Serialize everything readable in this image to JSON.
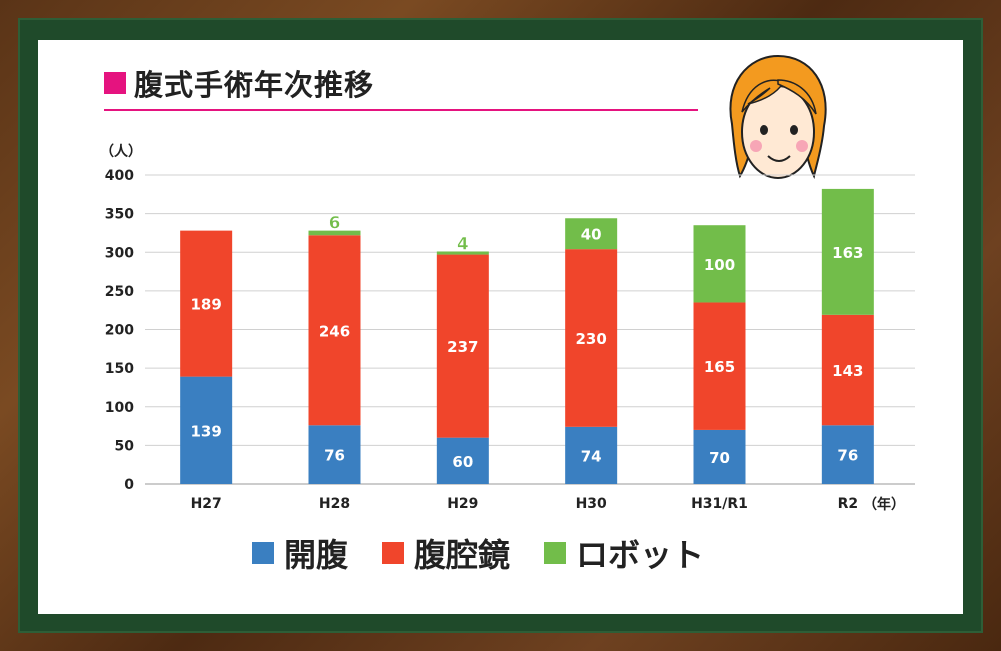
{
  "title": "腹式手術年次推移",
  "colors": {
    "open": "#3a7fc1",
    "laparoscopic": "#f0452b",
    "robot": "#72bd4a",
    "accent": "#e5137f",
    "grid": "#d0d0d0"
  },
  "legend": [
    {
      "label": "開腹",
      "color": "#3a7fc1"
    },
    {
      "label": "腹腔鏡",
      "color": "#f0452b"
    },
    {
      "label": "ロボット",
      "color": "#72bd4a"
    }
  ],
  "chart_data": {
    "type": "bar",
    "stacked": true,
    "title": "腹式手術年次推移",
    "ylabel": "（人）",
    "xlabel": "（年）",
    "ylim": [
      0,
      400
    ],
    "yticks": [
      0,
      50,
      100,
      150,
      200,
      250,
      300,
      350,
      400
    ],
    "categories": [
      "H27",
      "H28",
      "H29",
      "H30",
      "H31/R1",
      "R2"
    ],
    "series": [
      {
        "name": "開腹",
        "values": [
          139,
          76,
          60,
          74,
          70,
          76
        ]
      },
      {
        "name": "腹腔鏡",
        "values": [
          189,
          246,
          237,
          230,
          165,
          143
        ]
      },
      {
        "name": "ロボット",
        "values": [
          0,
          6,
          4,
          40,
          100,
          163
        ]
      }
    ],
    "grid": true,
    "legend_position": "bottom"
  }
}
